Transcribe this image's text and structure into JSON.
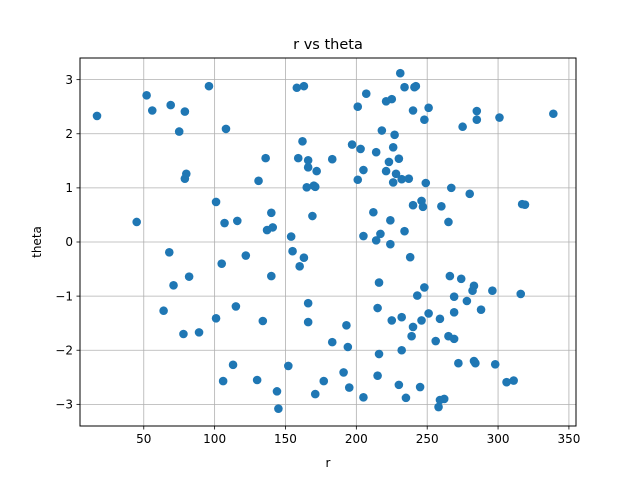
{
  "chart_data": {
    "type": "scatter",
    "title": "r vs theta",
    "xlabel": "r",
    "ylabel": "theta",
    "xlim": [
      5,
      355
    ],
    "ylim": [
      -3.4,
      3.4
    ],
    "xticks": [
      50,
      100,
      150,
      200,
      250,
      300,
      350
    ],
    "yticks": [
      -3,
      -2,
      -1,
      0,
      1,
      2,
      3
    ],
    "grid": true,
    "marker_color": "#1f77b4",
    "points": [
      [
        17,
        2.33
      ],
      [
        45,
        0.37
      ],
      [
        52,
        2.71
      ],
      [
        56,
        2.43
      ],
      [
        64,
        -1.27
      ],
      [
        68,
        -0.19
      ],
      [
        69,
        2.53
      ],
      [
        71,
        -0.8
      ],
      [
        75,
        2.04
      ],
      [
        78,
        -1.7
      ],
      [
        79,
        2.41
      ],
      [
        79,
        1.17
      ],
      [
        80,
        1.26
      ],
      [
        82,
        -0.64
      ],
      [
        89,
        -1.67
      ],
      [
        96,
        2.88
      ],
      [
        101,
        0.74
      ],
      [
        101,
        -1.41
      ],
      [
        105,
        -0.4
      ],
      [
        106,
        -2.57
      ],
      [
        107,
        0.35
      ],
      [
        108,
        2.09
      ],
      [
        113,
        -2.27
      ],
      [
        115,
        -1.19
      ],
      [
        116,
        0.39
      ],
      [
        122,
        -0.25
      ],
      [
        130,
        -2.55
      ],
      [
        131,
        1.13
      ],
      [
        134,
        -1.46
      ],
      [
        136,
        1.55
      ],
      [
        137,
        0.22
      ],
      [
        140,
        0.54
      ],
      [
        140,
        -0.63
      ],
      [
        141,
        0.27
      ],
      [
        144,
        -2.76
      ],
      [
        145,
        -3.08
      ],
      [
        152,
        -2.29
      ],
      [
        154,
        0.1
      ],
      [
        155,
        -0.17
      ],
      [
        158,
        2.85
      ],
      [
        159,
        1.55
      ],
      [
        160,
        -0.45
      ],
      [
        162,
        1.86
      ],
      [
        163,
        2.88
      ],
      [
        163,
        -0.29
      ],
      [
        165,
        1.01
      ],
      [
        166,
        1.51
      ],
      [
        166,
        1.38
      ],
      [
        166,
        -1.13
      ],
      [
        166,
        -1.48
      ],
      [
        169,
        0.48
      ],
      [
        170,
        1.04
      ],
      [
        171,
        1.02
      ],
      [
        171,
        -2.81
      ],
      [
        172,
        1.31
      ],
      [
        177,
        -2.57
      ],
      [
        183,
        1.53
      ],
      [
        183,
        -1.85
      ],
      [
        191,
        -2.41
      ],
      [
        193,
        -1.54
      ],
      [
        194,
        -1.94
      ],
      [
        195,
        -2.69
      ],
      [
        197,
        1.8
      ],
      [
        201,
        2.5
      ],
      [
        201,
        1.15
      ],
      [
        203,
        1.72
      ],
      [
        205,
        1.33
      ],
      [
        205,
        0.11
      ],
      [
        205,
        -2.87
      ],
      [
        207,
        2.74
      ],
      [
        212,
        0.55
      ],
      [
        214,
        1.66
      ],
      [
        214,
        0.03
      ],
      [
        215,
        -1.22
      ],
      [
        215,
        -2.47
      ],
      [
        216,
        -0.75
      ],
      [
        216,
        -2.07
      ],
      [
        217,
        0.15
      ],
      [
        218,
        2.06
      ],
      [
        221,
        2.6
      ],
      [
        221,
        1.31
      ],
      [
        223,
        1.48
      ],
      [
        224,
        0.4
      ],
      [
        224,
        -0.04
      ],
      [
        225,
        -1.45
      ],
      [
        225,
        2.64
      ],
      [
        226,
        1.75
      ],
      [
        226,
        1.1
      ],
      [
        227,
        1.98
      ],
      [
        228,
        1.26
      ],
      [
        230,
        1.54
      ],
      [
        230,
        -2.64
      ],
      [
        231,
        3.12
      ],
      [
        232,
        -2.0
      ],
      [
        232,
        -1.39
      ],
      [
        232,
        1.16
      ],
      [
        234,
        0.2
      ],
      [
        234,
        2.86
      ],
      [
        235,
        -2.88
      ],
      [
        237,
        1.17
      ],
      [
        238,
        -0.28
      ],
      [
        239,
        -1.74
      ],
      [
        240,
        2.43
      ],
      [
        240,
        0.68
      ],
      [
        240,
        -1.57
      ],
      [
        241,
        2.86
      ],
      [
        242,
        2.88
      ],
      [
        243,
        -0.99
      ],
      [
        245,
        -2.68
      ],
      [
        246,
        -1.45
      ],
      [
        246,
        0.76
      ],
      [
        247,
        0.65
      ],
      [
        248,
        2.26
      ],
      [
        248,
        -0.84
      ],
      [
        249,
        1.09
      ],
      [
        251,
        -1.32
      ],
      [
        251,
        2.48
      ],
      [
        256,
        -1.83
      ],
      [
        258,
        -3.05
      ],
      [
        259,
        -2.92
      ],
      [
        259,
        -1.42
      ],
      [
        260,
        0.66
      ],
      [
        262,
        -2.9
      ],
      [
        265,
        -1.74
      ],
      [
        265,
        0.37
      ],
      [
        266,
        -0.63
      ],
      [
        267,
        1.0
      ],
      [
        269,
        -1.01
      ],
      [
        269,
        -1.79
      ],
      [
        269,
        -1.3
      ],
      [
        272,
        -2.24
      ],
      [
        274,
        -0.68
      ],
      [
        275,
        2.13
      ],
      [
        278,
        -1.09
      ],
      [
        280,
        0.89
      ],
      [
        282,
        -0.9
      ],
      [
        283,
        -0.81
      ],
      [
        283,
        -2.2
      ],
      [
        284,
        -2.24
      ],
      [
        285,
        2.42
      ],
      [
        285,
        2.26
      ],
      [
        288,
        -1.25
      ],
      [
        296,
        -0.9
      ],
      [
        298,
        -2.26
      ],
      [
        301,
        2.3
      ],
      [
        306,
        -2.59
      ],
      [
        311,
        -2.56
      ],
      [
        316,
        -0.96
      ],
      [
        317,
        0.7
      ],
      [
        319,
        0.69
      ],
      [
        339,
        2.37
      ]
    ]
  }
}
